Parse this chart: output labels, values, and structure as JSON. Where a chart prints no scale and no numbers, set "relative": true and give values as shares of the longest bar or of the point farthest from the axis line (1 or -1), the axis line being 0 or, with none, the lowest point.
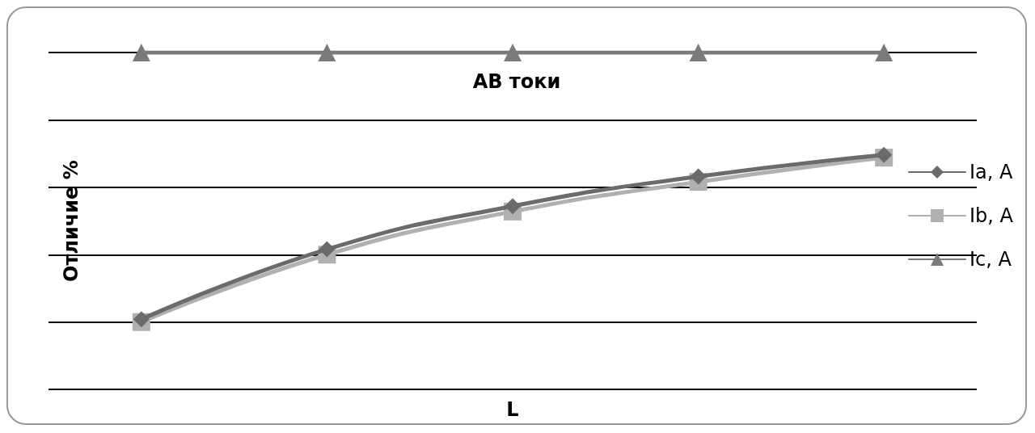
{
  "chart_data": {
    "type": "line",
    "title": "АВ токи",
    "xlabel": "L",
    "ylabel": "Отличие %",
    "relative": true,
    "categories": [
      null,
      null,
      null,
      null,
      null
    ],
    "series": [
      {
        "name": "Ia, A",
        "color": "#6b6b6b",
        "marker": "diamond",
        "values": [
          0.01,
          0.27,
          0.43,
          0.54,
          0.62
        ]
      },
      {
        "name": "Ib, A",
        "color": "#b0b0b0",
        "marker": "square",
        "values": [
          0,
          0.25,
          0.41,
          0.52,
          0.61
        ]
      },
      {
        "name": "Ic, A",
        "color": "#7a7a7a",
        "marker": "triangle",
        "values": [
          1,
          1,
          1,
          1,
          1
        ]
      }
    ],
    "grid": true,
    "legend": "right",
    "line_style": "solid"
  }
}
